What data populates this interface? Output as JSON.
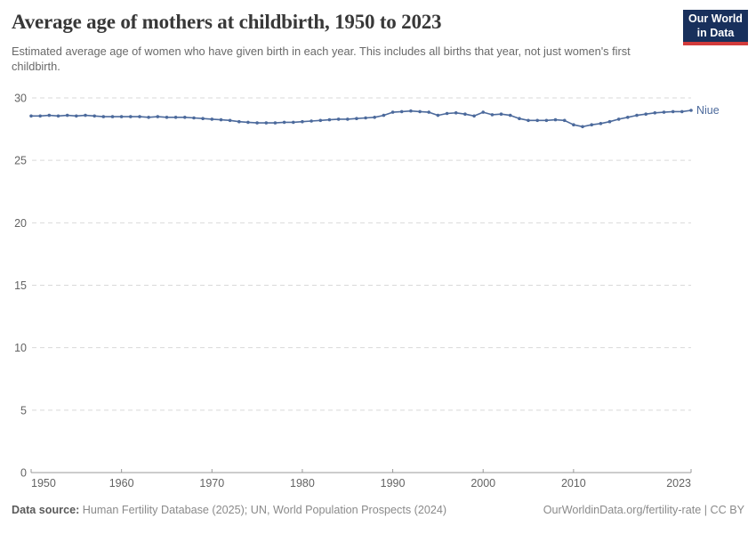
{
  "header": {
    "title": "Average age of mothers at childbirth, 1950 to 2023",
    "subtitle": "Estimated average age of women who have given birth in each year. This includes all births that year, not just women's first childbirth.",
    "logo": {
      "line1": "Our World",
      "line2": "in Data",
      "bg_color": "#18305c",
      "stripe_color": "#d23b3b"
    }
  },
  "footer": {
    "source_label": "Data source:",
    "source_text": " Human Fertility Database (2025); UN, World Population Prospects (2024)",
    "credit": "OurWorldinData.org/fertility-rate | CC BY"
  },
  "chart_data": {
    "type": "line",
    "title": "Average age of mothers at childbirth, 1950 to 2023",
    "xlabel": "",
    "ylabel": "",
    "xlim": [
      1950,
      2023
    ],
    "ylim": [
      0,
      30
    ],
    "xticks": [
      1950,
      1960,
      1970,
      1980,
      1990,
      2000,
      2010,
      2023
    ],
    "yticks": [
      0,
      5,
      10,
      15,
      20,
      25,
      30
    ],
    "grid": "horizontal-dashed",
    "legend_position": "end-of-line-label",
    "colors": {
      "line": "#4c6a9c",
      "grid": "#d9d9d9",
      "axis": "#999999",
      "tick_label": "#636363"
    },
    "x": [
      1950,
      1951,
      1952,
      1953,
      1954,
      1955,
      1956,
      1957,
      1958,
      1959,
      1960,
      1961,
      1962,
      1963,
      1964,
      1965,
      1966,
      1967,
      1968,
      1969,
      1970,
      1971,
      1972,
      1973,
      1974,
      1975,
      1976,
      1977,
      1978,
      1979,
      1980,
      1981,
      1982,
      1983,
      1984,
      1985,
      1986,
      1987,
      1988,
      1989,
      1990,
      1991,
      1992,
      1993,
      1994,
      1995,
      1996,
      1997,
      1998,
      1999,
      2000,
      2001,
      2002,
      2003,
      2004,
      2005,
      2006,
      2007,
      2008,
      2009,
      2010,
      2011,
      2012,
      2013,
      2014,
      2015,
      2016,
      2017,
      2018,
      2019,
      2020,
      2021,
      2022,
      2023
    ],
    "series": [
      {
        "name": "Niue",
        "values": [
          28.55,
          28.55,
          28.6,
          28.55,
          28.6,
          28.55,
          28.6,
          28.55,
          28.5,
          28.5,
          28.5,
          28.5,
          28.5,
          28.45,
          28.5,
          28.45,
          28.45,
          28.45,
          28.4,
          28.35,
          28.3,
          28.25,
          28.2,
          28.1,
          28.05,
          28.0,
          28.0,
          28.0,
          28.05,
          28.05,
          28.1,
          28.15,
          28.2,
          28.25,
          28.3,
          28.3,
          28.35,
          28.4,
          28.45,
          28.6,
          28.85,
          28.9,
          28.95,
          28.9,
          28.85,
          28.6,
          28.75,
          28.8,
          28.7,
          28.55,
          28.85,
          28.65,
          28.7,
          28.6,
          28.35,
          28.2,
          28.2,
          28.2,
          28.25,
          28.2,
          27.85,
          27.7,
          27.85,
          27.95,
          28.1,
          28.3,
          28.45,
          28.6,
          28.7,
          28.8,
          28.85,
          28.9,
          28.9,
          29.0
        ]
      }
    ]
  }
}
